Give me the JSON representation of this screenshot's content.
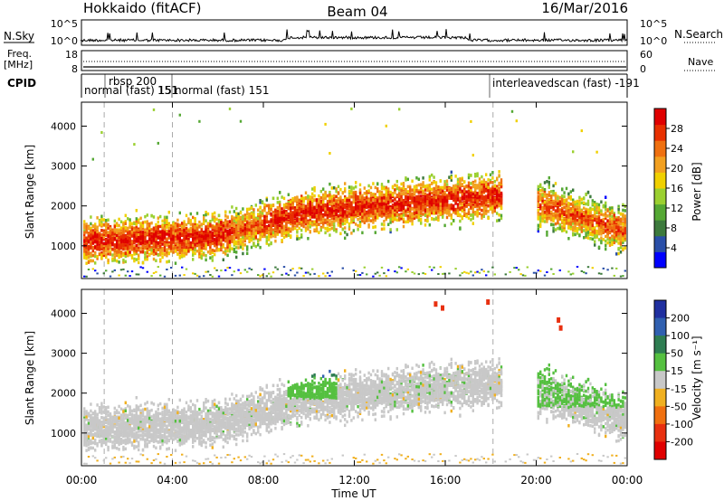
{
  "header": {
    "station": "Hokkaido (fitACF)",
    "beam": "Beam 04",
    "date": "16/Mar/2016"
  },
  "chart_data": [
    {
      "type": "line",
      "name": "noise",
      "left_label": "N.Sky",
      "right_label": "N.Search",
      "yticks_left": [
        "10^5",
        "10^0"
      ],
      "yticks_right": [
        "10^5",
        "10^0"
      ]
    },
    {
      "type": "line",
      "name": "frequency",
      "left_label": "Freq.",
      "left_unit": "[MHz]",
      "right_label": "Nave",
      "yticks_left": [
        "18",
        "8"
      ],
      "yticks_right": [
        "60",
        "0"
      ]
    },
    {
      "type": "table",
      "name": "cpid",
      "label": "CPID",
      "segments": [
        {
          "name": "normal (fast) 151",
          "start_hour": 0,
          "end_hour": 1.0
        },
        {
          "name": "rbsp 200",
          "start_hour": 1.0,
          "end_hour": 4.0
        },
        {
          "name": "normal (fast) 151",
          "start_hour": 4.0,
          "end_hour": 18.1
        },
        {
          "name": "interleavedscan (fast) -191",
          "start_hour": 18.1,
          "end_hour": 24
        }
      ],
      "overlap_label": "151"
    },
    {
      "type": "heatmap",
      "name": "power",
      "ylabel": "Slant Range [km]",
      "ylim": [
        180,
        4600
      ],
      "yticks": [
        1000,
        2000,
        3000,
        4000
      ],
      "xlim": [
        0,
        24
      ],
      "colorbar": {
        "label": "Power [dB]",
        "ticks": [
          "4",
          "8",
          "12",
          "16",
          "20",
          "24",
          "28"
        ],
        "colors": [
          "#0000ff",
          "#2a4fa8",
          "#3d7a3d",
          "#55a834",
          "#9bd030",
          "#f0d000",
          "#f2a020",
          "#ef7010",
          "#e83000",
          "#e00000"
        ]
      }
    },
    {
      "type": "heatmap",
      "name": "velocity",
      "ylabel": "Slant Range [km]",
      "ylim": [
        180,
        4600
      ],
      "yticks": [
        1000,
        2000,
        3000,
        4000
      ],
      "xlim": [
        0,
        24
      ],
      "xlabel": "Time UT",
      "xticks": [
        "00:00",
        "04:00",
        "08:00",
        "12:00",
        "16:00",
        "20:00",
        "00:00"
      ],
      "colorbar": {
        "label": "Velocity [m s⁻¹]",
        "ticks": [
          "200",
          "100",
          "50",
          "15",
          "-15",
          "-50",
          "-100",
          "-200"
        ],
        "colors": [
          "#2030a0",
          "#3060b0",
          "#2e7d52",
          "#55c040",
          "#c8c8c8",
          "#f0b020",
          "#f07010",
          "#e83010",
          "#e00000"
        ]
      }
    }
  ]
}
